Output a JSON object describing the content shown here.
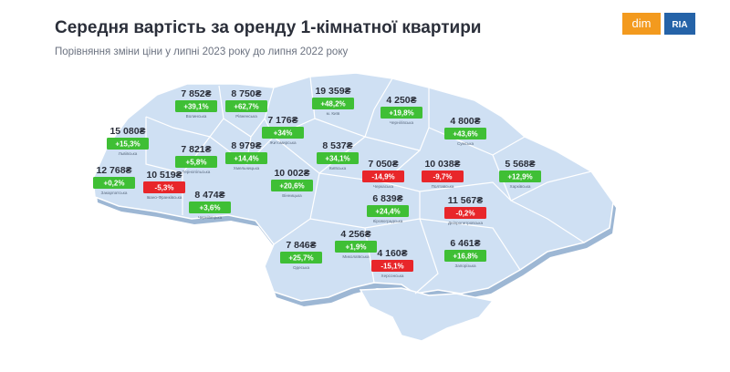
{
  "header": {
    "title": "Середня вартість за оренду 1-кімнатної квартири",
    "subtitle": "Порівняння зміни ціни у липні 2023 року до липня 2022 року",
    "logo": {
      "left": "dim",
      "right": "RIA"
    }
  },
  "regions": [
    {
      "name": "Волинська",
      "price": "7 852₴",
      "change": "+39,1%"
    },
    {
      "name": "Рівненська",
      "price": "8 750₴",
      "change": "+62,7%"
    },
    {
      "name": "м. Київ",
      "price": "19 359₴",
      "change": "+48,2%"
    },
    {
      "name": "Чернігівська",
      "price": "4 250₴",
      "change": "+19,8%"
    },
    {
      "name": "Сумська",
      "price": "4 800₴",
      "change": "+43,6%"
    },
    {
      "name": "Львівська",
      "price": "15 080₴",
      "change": "+15,3%"
    },
    {
      "name": "Житомирська",
      "price": "7 176₴",
      "change": "+34%"
    },
    {
      "name": "Хмельницька",
      "price": "8 979₴",
      "change": "+14,4%"
    },
    {
      "name": "Тернопільська",
      "price": "7 821₴",
      "change": "+5,8%"
    },
    {
      "name": "Київська",
      "price": "8 537₴",
      "change": "+34,1%"
    },
    {
      "name": "Черкаська",
      "price": "7 050₴",
      "change": "-14,9%"
    },
    {
      "name": "Полтавська",
      "price": "10 038₴",
      "change": "-9,7%"
    },
    {
      "name": "Харківська",
      "price": "5 568₴",
      "change": "+12,9%"
    },
    {
      "name": "Закарпатська",
      "price": "12 768₴",
      "change": "+0,2%"
    },
    {
      "name": "Івано-Франківська",
      "price": "10 519₴",
      "change": "-5,3%"
    },
    {
      "name": "Вінницька",
      "price": "10 002₴",
      "change": "+20,6%"
    },
    {
      "name": "Чернівецька",
      "price": "8 474₴",
      "change": "+3,6%"
    },
    {
      "name": "Кіровоградська",
      "price": "6 839₴",
      "change": "+24,4%"
    },
    {
      "name": "Дніпропетровська",
      "price": "11 567₴",
      "change": "-0,2%"
    },
    {
      "name": "Миколаївська",
      "price": "4 256₴",
      "change": "+1,9%"
    },
    {
      "name": "Одеська",
      "price": "7 846₴",
      "change": "+25,7%"
    },
    {
      "name": "Херсонська",
      "price": "4 160₴",
      "change": "-15,1%"
    },
    {
      "name": "Запорізька",
      "price": "6 461₴",
      "change": "+16,8%"
    }
  ]
}
